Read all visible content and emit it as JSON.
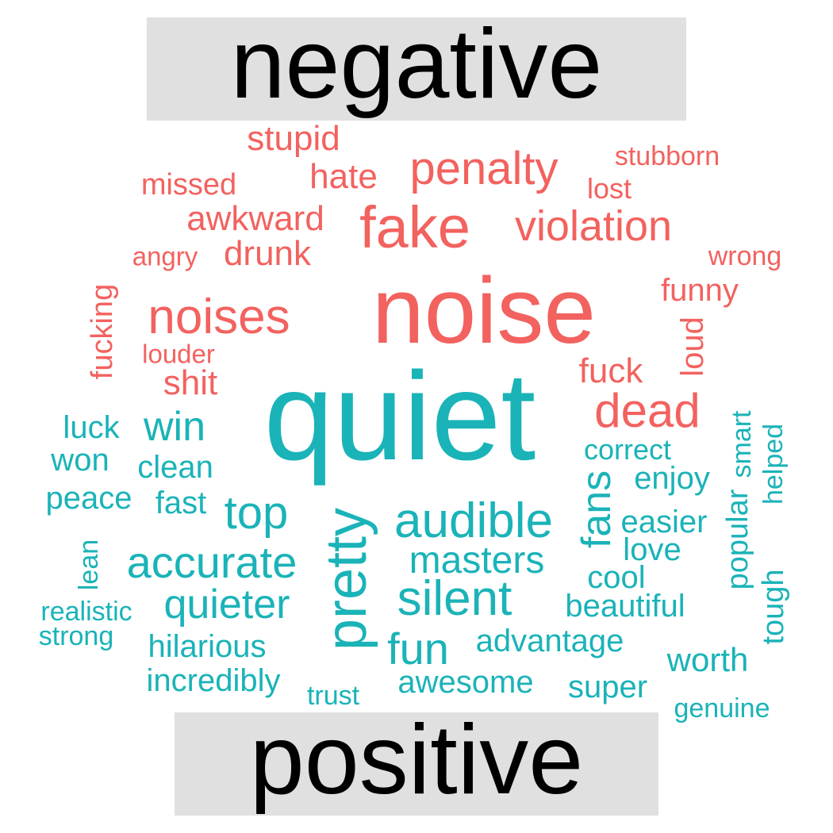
{
  "groups": {
    "negative": {
      "label": "negative",
      "color": "#f2625f"
    },
    "positive": {
      "label": "positive",
      "color": "#1ab3b8"
    }
  },
  "words": [
    {
      "text": "noise",
      "group": "negative"
    },
    {
      "text": "fake",
      "group": "negative"
    },
    {
      "text": "penalty",
      "group": "negative"
    },
    {
      "text": "violation",
      "group": "negative"
    },
    {
      "text": "noises",
      "group": "negative"
    },
    {
      "text": "dead",
      "group": "negative"
    },
    {
      "text": "stupid",
      "group": "negative"
    },
    {
      "text": "hate",
      "group": "negative"
    },
    {
      "text": "awkward",
      "group": "negative"
    },
    {
      "text": "drunk",
      "group": "negative"
    },
    {
      "text": "missed",
      "group": "negative"
    },
    {
      "text": "stubborn",
      "group": "negative"
    },
    {
      "text": "lost",
      "group": "negative"
    },
    {
      "text": "angry",
      "group": "negative"
    },
    {
      "text": "wrong",
      "group": "negative"
    },
    {
      "text": "funny",
      "group": "negative"
    },
    {
      "text": "fucking",
      "group": "negative"
    },
    {
      "text": "louder",
      "group": "negative"
    },
    {
      "text": "shit",
      "group": "negative"
    },
    {
      "text": "fuck",
      "group": "negative"
    },
    {
      "text": "loud",
      "group": "negative"
    },
    {
      "text": "quiet",
      "group": "positive"
    },
    {
      "text": "pretty",
      "group": "positive"
    },
    {
      "text": "audible",
      "group": "positive"
    },
    {
      "text": "top",
      "group": "positive"
    },
    {
      "text": "accurate",
      "group": "positive"
    },
    {
      "text": "silent",
      "group": "positive"
    },
    {
      "text": "quieter",
      "group": "positive"
    },
    {
      "text": "win",
      "group": "positive"
    },
    {
      "text": "fans",
      "group": "positive"
    },
    {
      "text": "fun",
      "group": "positive"
    },
    {
      "text": "masters",
      "group": "positive"
    },
    {
      "text": "luck",
      "group": "positive"
    },
    {
      "text": "won",
      "group": "positive"
    },
    {
      "text": "clean",
      "group": "positive"
    },
    {
      "text": "peace",
      "group": "positive"
    },
    {
      "text": "fast",
      "group": "positive"
    },
    {
      "text": "correct",
      "group": "positive"
    },
    {
      "text": "enjoy",
      "group": "positive"
    },
    {
      "text": "smart",
      "group": "positive"
    },
    {
      "text": "helped",
      "group": "positive"
    },
    {
      "text": "popular",
      "group": "positive"
    },
    {
      "text": "easier",
      "group": "positive"
    },
    {
      "text": "love",
      "group": "positive"
    },
    {
      "text": "cool",
      "group": "positive"
    },
    {
      "text": "beautiful",
      "group": "positive"
    },
    {
      "text": "tough",
      "group": "positive"
    },
    {
      "text": "lean",
      "group": "positive"
    },
    {
      "text": "realistic",
      "group": "positive"
    },
    {
      "text": "strong",
      "group": "positive"
    },
    {
      "text": "hilarious",
      "group": "positive"
    },
    {
      "text": "incredibly",
      "group": "positive"
    },
    {
      "text": "trust",
      "group": "positive"
    },
    {
      "text": "advantage",
      "group": "positive"
    },
    {
      "text": "awesome",
      "group": "positive"
    },
    {
      "text": "super",
      "group": "positive"
    },
    {
      "text": "worth",
      "group": "positive"
    },
    {
      "text": "genuine",
      "group": "positive"
    }
  ]
}
